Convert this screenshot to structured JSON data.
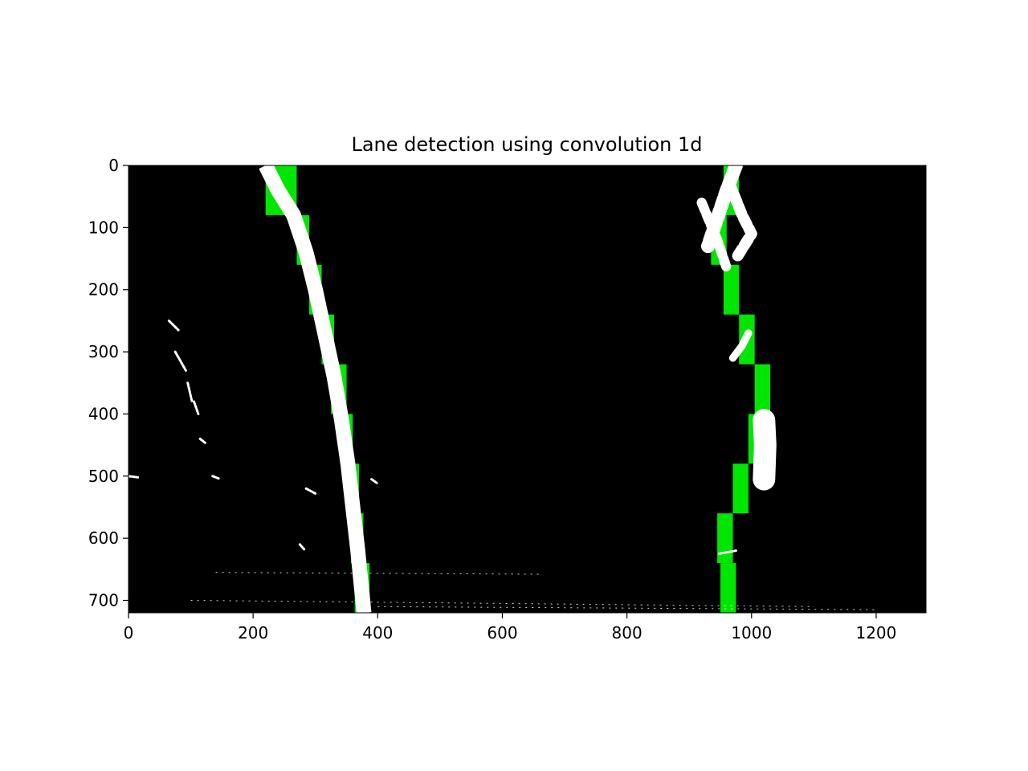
{
  "chart_data": {
    "type": "heatmap",
    "title": "Lane detection using convolution 1d",
    "xlabel": "",
    "ylabel": "",
    "xlim": [
      0,
      1280
    ],
    "ylim": [
      720,
      0
    ],
    "y_inverted": true,
    "grid": false,
    "x_ticks": [
      0,
      200,
      400,
      600,
      800,
      1000,
      1200
    ],
    "y_ticks": [
      0,
      100,
      200,
      300,
      400,
      500,
      600,
      700
    ],
    "background_color": "#000000",
    "lane_pixel_color": "#ffffff",
    "window_color": "#00e600",
    "window_height": 80,
    "left_lane_windows": [
      {
        "y_top": 0,
        "y_bottom": 80,
        "x_left": 220,
        "x_right": 270
      },
      {
        "y_top": 80,
        "y_bottom": 160,
        "x_left": 270,
        "x_right": 290
      },
      {
        "y_top": 160,
        "y_bottom": 240,
        "x_left": 290,
        "x_right": 310
      },
      {
        "y_top": 240,
        "y_bottom": 320,
        "x_left": 310,
        "x_right": 330
      },
      {
        "y_top": 320,
        "y_bottom": 400,
        "x_left": 325,
        "x_right": 350
      },
      {
        "y_top": 400,
        "y_bottom": 480,
        "x_left": 340,
        "x_right": 360
      },
      {
        "y_top": 480,
        "y_bottom": 560,
        "x_left": 350,
        "x_right": 370
      },
      {
        "y_top": 560,
        "y_bottom": 640,
        "x_left": 357,
        "x_right": 377
      },
      {
        "y_top": 640,
        "y_bottom": 720,
        "x_left": 363,
        "x_right": 387
      }
    ],
    "right_lane_windows": [
      {
        "y_top": 0,
        "y_bottom": 80,
        "x_left": 955,
        "x_right": 980
      },
      {
        "y_top": 80,
        "y_bottom": 160,
        "x_left": 935,
        "x_right": 960
      },
      {
        "y_top": 160,
        "y_bottom": 240,
        "x_left": 955,
        "x_right": 980
      },
      {
        "y_top": 240,
        "y_bottom": 320,
        "x_left": 980,
        "x_right": 1005
      },
      {
        "y_top": 320,
        "y_bottom": 400,
        "x_left": 1005,
        "x_right": 1030
      },
      {
        "y_top": 400,
        "y_bottom": 480,
        "x_left": 995,
        "x_right": 1020
      },
      {
        "y_top": 480,
        "y_bottom": 560,
        "x_left": 970,
        "x_right": 995
      },
      {
        "y_top": 560,
        "y_bottom": 640,
        "x_left": 945,
        "x_right": 970
      },
      {
        "y_top": 640,
        "y_bottom": 720,
        "x_left": 950,
        "x_right": 975
      }
    ],
    "left_lane_line": [
      [
        220,
        0
      ],
      [
        240,
        40
      ],
      [
        265,
        80
      ],
      [
        285,
        140
      ],
      [
        300,
        200
      ],
      [
        315,
        270
      ],
      [
        330,
        340
      ],
      [
        342,
        410
      ],
      [
        352,
        480
      ],
      [
        360,
        550
      ],
      [
        368,
        620
      ],
      [
        374,
        680
      ],
      [
        378,
        720
      ]
    ],
    "left_lane_width": 24,
    "right_lane_segments": [
      {
        "points": [
          [
            975,
            0
          ],
          [
            960,
            40
          ],
          [
            940,
            100
          ],
          [
            930,
            130
          ]
        ],
        "width": 22
      },
      {
        "points": [
          [
            965,
            30
          ],
          [
            985,
            80
          ],
          [
            1000,
            110
          ],
          [
            975,
            150
          ]
        ],
        "width": 18
      },
      {
        "points": [
          [
            920,
            60
          ],
          [
            945,
            120
          ],
          [
            960,
            165
          ]
        ],
        "width": 16
      },
      {
        "points": [
          [
            995,
            270
          ],
          [
            985,
            290
          ],
          [
            970,
            310
          ]
        ],
        "width": 12
      },
      {
        "points": [
          [
            1020,
            410
          ],
          [
            1022,
            450
          ],
          [
            1020,
            505
          ]
        ],
        "width": 36
      }
    ],
    "noise_dashes": [
      [
        [
          65,
          250
        ],
        [
          80,
          265
        ]
      ],
      [
        [
          75,
          300
        ],
        [
          92,
          330
        ]
      ],
      [
        [
          95,
          350
        ],
        [
          102,
          380
        ]
      ],
      [
        [
          105,
          380
        ],
        [
          112,
          400
        ]
      ],
      [
        [
          115,
          440
        ],
        [
          125,
          448
        ]
      ],
      [
        [
          275,
          610
        ],
        [
          282,
          618
        ]
      ],
      [
        [
          135,
          500
        ],
        [
          145,
          504
        ]
      ],
      [
        [
          285,
          520
        ],
        [
          300,
          528
        ]
      ],
      [
        [
          390,
          505
        ],
        [
          400,
          512
        ]
      ],
      [
        [
          948,
          625
        ],
        [
          975,
          620
        ]
      ],
      [
        [
          0,
          500
        ],
        [
          15,
          502
        ]
      ]
    ],
    "noise_lines": [
      [
        [
          140,
          655
        ],
        [
          660,
          658
        ]
      ],
      [
        [
          100,
          700
        ],
        [
          1100,
          710
        ]
      ],
      [
        [
          400,
          710
        ],
        [
          1200,
          715
        ]
      ]
    ]
  }
}
